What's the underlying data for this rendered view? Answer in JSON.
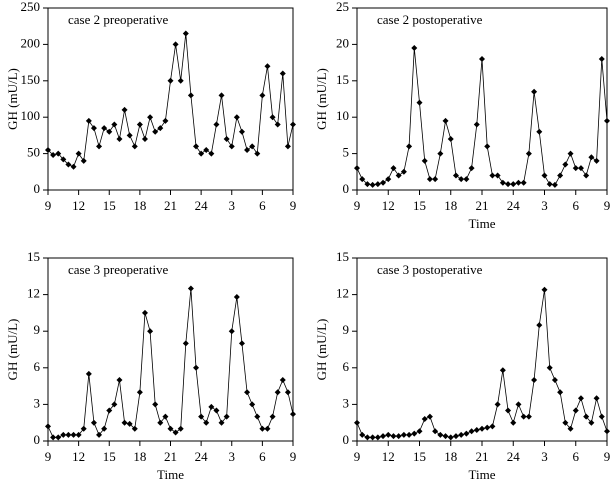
{
  "chart_data": [
    {
      "type": "line",
      "title": "case 2 preoperative",
      "y_label": "GH (mU/L)",
      "x": [
        9,
        9.5,
        10,
        10.5,
        11,
        11.5,
        12,
        12.5,
        13,
        13.5,
        14,
        14.5,
        15,
        15.5,
        16,
        16.5,
        17,
        17.5,
        18,
        18.5,
        19,
        19.5,
        20,
        20.5,
        21,
        21.5,
        22,
        22.5,
        23,
        23.5,
        24,
        24.5,
        25,
        25.5,
        26,
        26.5,
        27,
        27.5,
        28,
        28.5,
        29,
        29.5,
        30,
        30.5,
        31,
        31.5,
        32,
        32.5,
        33
      ],
      "values": [
        55,
        48,
        50,
        42,
        35,
        32,
        50,
        40,
        95,
        85,
        60,
        85,
        80,
        90,
        70,
        110,
        75,
        60,
        90,
        70,
        100,
        80,
        85,
        95,
        150,
        200,
        150,
        215,
        130,
        60,
        50,
        55,
        50,
        90,
        130,
        70,
        60,
        100,
        80,
        55,
        60,
        50,
        130,
        170,
        100,
        90,
        160,
        60,
        90
      ],
      "xlim": [
        9,
        33
      ],
      "xticks": [
        9,
        12,
        15,
        18,
        21,
        24,
        {
          "value": 27,
          "label": "3"
        },
        {
          "value": 30,
          "label": "6"
        },
        {
          "value": 33,
          "label": "9"
        }
      ],
      "ylim": [
        0,
        250
      ],
      "yticks": [
        0,
        50,
        100,
        150,
        200,
        250
      ],
      "color": "#000000"
    },
    {
      "type": "line",
      "title": "case 2 postoperative",
      "y_label": "GH (mU/L)",
      "x_label": "Time",
      "x": [
        9,
        9.5,
        10,
        10.5,
        11,
        11.5,
        12,
        12.5,
        13,
        13.5,
        14,
        14.5,
        15,
        15.5,
        16,
        16.5,
        17,
        17.5,
        18,
        18.5,
        19,
        19.5,
        20,
        20.5,
        21,
        21.5,
        22,
        22.5,
        23,
        23.5,
        24,
        24.5,
        25,
        25.5,
        26,
        26.5,
        27,
        27.5,
        28,
        28.5,
        29,
        29.5,
        30,
        30.5,
        31,
        31.5,
        32,
        32.5,
        33
      ],
      "values": [
        3,
        1.5,
        0.8,
        0.7,
        0.8,
        1,
        1.5,
        3,
        2,
        2.5,
        6,
        19.5,
        12,
        4,
        1.5,
        1.5,
        5,
        9.5,
        7,
        2,
        1.5,
        1.5,
        3,
        9,
        18,
        6,
        2,
        2,
        1,
        0.8,
        0.8,
        1,
        1,
        5,
        13.5,
        8,
        2,
        0.8,
        0.7,
        2,
        3.5,
        5,
        3,
        3,
        2,
        4.5,
        4,
        18,
        9.5
      ],
      "xlim": [
        9,
        33
      ],
      "xticks": [
        9,
        12,
        15,
        18,
        21,
        24,
        {
          "value": 27,
          "label": "3"
        },
        {
          "value": 30,
          "label": "6"
        },
        {
          "value": 33,
          "label": "9"
        }
      ],
      "ylim": [
        0,
        25
      ],
      "yticks": [
        0,
        5,
        10,
        15,
        20,
        25
      ],
      "color": "#000000"
    },
    {
      "type": "line",
      "title": "case 3 preoperative",
      "y_label": "GH (mU/L)",
      "x_label": "Time",
      "x": [
        9,
        9.5,
        10,
        10.5,
        11,
        11.5,
        12,
        12.5,
        13,
        13.5,
        14,
        14.5,
        15,
        15.5,
        16,
        16.5,
        17,
        17.5,
        18,
        18.5,
        19,
        19.5,
        20,
        20.5,
        21,
        21.5,
        22,
        22.5,
        23,
        23.5,
        24,
        24.5,
        25,
        25.5,
        26,
        26.5,
        27,
        27.5,
        28,
        28.5,
        29,
        29.5,
        30,
        30.5,
        31,
        31.5,
        32,
        32.5,
        33
      ],
      "values": [
        1.2,
        0.3,
        0.3,
        0.5,
        0.5,
        0.5,
        0.5,
        1,
        5.5,
        1.5,
        0.5,
        1,
        2.5,
        3,
        5,
        1.5,
        1.4,
        1,
        4,
        10.5,
        9,
        3,
        1.5,
        2,
        1,
        0.7,
        1,
        8,
        12.5,
        6,
        2,
        1.5,
        2.8,
        2.5,
        1.5,
        2,
        9,
        11.8,
        8,
        4,
        3,
        2,
        1,
        1,
        2,
        4,
        5,
        4,
        2.2
      ],
      "xlim": [
        9,
        33
      ],
      "xticks": [
        9,
        12,
        15,
        18,
        21,
        24,
        {
          "value": 27,
          "label": "3"
        },
        {
          "value": 30,
          "label": "6"
        },
        {
          "value": 33,
          "label": "9"
        }
      ],
      "ylim": [
        0,
        15
      ],
      "yticks": [
        0,
        3,
        6,
        9,
        12,
        15
      ],
      "color": "#000000"
    },
    {
      "type": "line",
      "title": "case 3 postoperative",
      "y_label": "GH (mU/L)",
      "x_label": "Time",
      "x": [
        9,
        9.5,
        10,
        10.5,
        11,
        11.5,
        12,
        12.5,
        13,
        13.5,
        14,
        14.5,
        15,
        15.5,
        16,
        16.5,
        17,
        17.5,
        18,
        18.5,
        19,
        19.5,
        20,
        20.5,
        21,
        21.5,
        22,
        22.5,
        23,
        23.5,
        24,
        24.5,
        25,
        25.5,
        26,
        26.5,
        27,
        27.5,
        28,
        28.5,
        29,
        29.5,
        30,
        30.5,
        31,
        31.5,
        32,
        32.5,
        33
      ],
      "values": [
        1.5,
        0.5,
        0.3,
        0.3,
        0.3,
        0.4,
        0.5,
        0.4,
        0.4,
        0.5,
        0.5,
        0.6,
        0.8,
        1.8,
        2,
        0.8,
        0.5,
        0.4,
        0.3,
        0.4,
        0.5,
        0.6,
        0.8,
        0.9,
        1,
        1.1,
        1.2,
        3,
        5.8,
        2.5,
        1.5,
        3,
        2,
        2,
        5,
        9.5,
        12.4,
        6,
        5,
        4,
        1.5,
        1,
        2.5,
        3.5,
        2,
        1.5,
        3.5,
        2,
        0.8
      ],
      "xlim": [
        9,
        33
      ],
      "xticks": [
        9,
        12,
        15,
        18,
        21,
        24,
        {
          "value": 27,
          "label": "3"
        },
        {
          "value": 30,
          "label": "6"
        },
        {
          "value": 33,
          "label": "9"
        }
      ],
      "ylim": [
        0,
        15
      ],
      "yticks": [
        0,
        3,
        6,
        9,
        12,
        15
      ],
      "color": "#000000"
    }
  ]
}
